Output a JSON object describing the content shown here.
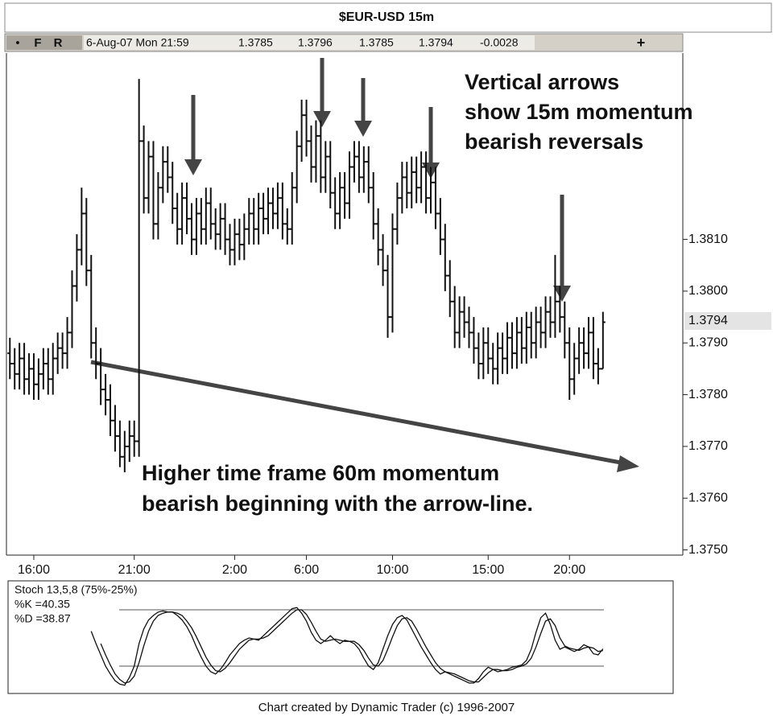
{
  "window_title": "$EUR-USD 15m",
  "toolbar": {
    "buttons": [
      "•",
      "F",
      "R"
    ],
    "datetime": "6-Aug-07 Mon 21:59",
    "change": -0.0028,
    "add_button": "+"
  },
  "chart_data": [
    {
      "type": "ohlc",
      "color": "#111111",
      "categories": [
        null,
        null,
        null,
        null,
        null,
        "16:00",
        null,
        null,
        null,
        null,
        null,
        null,
        null,
        null,
        null,
        null,
        null,
        null,
        null,
        null,
        null,
        null,
        null,
        null,
        null,
        null,
        "21:00",
        null,
        null,
        null,
        null,
        null,
        null,
        null,
        null,
        null,
        null,
        null,
        null,
        null,
        null,
        null,
        null,
        null,
        null,
        null,
        null,
        "2:00",
        null,
        null,
        null,
        null,
        null,
        null,
        null,
        null,
        null,
        null,
        null,
        null,
        null,
        null,
        "6:00",
        null,
        null,
        null,
        null,
        null,
        null,
        null,
        null,
        null,
        null,
        null,
        null,
        null,
        null,
        null,
        null,
        null,
        "10:00",
        null,
        null,
        null,
        null,
        null,
        null,
        null,
        null,
        null,
        null,
        null,
        null,
        null,
        null,
        null,
        null,
        null,
        null,
        null,
        "15:00",
        null,
        null,
        null,
        null,
        null,
        null,
        null,
        null,
        null,
        null,
        null,
        null,
        null,
        null,
        null,
        null,
        "20:00",
        null,
        null,
        null,
        null,
        null,
        null,
        null
      ],
      "open": [
        1.3788,
        1.3786,
        1.3784,
        1.3787,
        1.3783,
        1.3785,
        1.3782,
        1.3784,
        1.3786,
        1.3783,
        1.3787,
        1.3789,
        1.3788,
        1.3792,
        1.3801,
        1.3808,
        1.3815,
        1.3804,
        1.379,
        1.3786,
        1.3781,
        1.3779,
        1.3775,
        1.3772,
        1.3768,
        1.377,
        1.3772,
        1.3771,
        1.3829,
        1.3818,
        1.3826,
        1.3813,
        1.382,
        1.3825,
        1.3822,
        1.3816,
        1.3812,
        1.3818,
        1.3814,
        1.381,
        1.3815,
        1.3812,
        1.3817,
        1.3813,
        1.3811,
        1.3814,
        1.381,
        1.3808,
        1.3811,
        1.3809,
        1.3812,
        1.3815,
        1.3812,
        1.3816,
        1.3814,
        1.3817,
        1.3815,
        1.3818,
        1.3813,
        1.3812,
        1.382,
        1.3828,
        1.3834,
        1.3829,
        1.3824,
        1.383,
        1.3822,
        1.3826,
        1.3819,
        1.3815,
        1.382,
        1.3817,
        1.3824,
        1.3826,
        1.3822,
        1.3825,
        1.382,
        1.3813,
        1.3808,
        1.3804,
        1.3795,
        1.3812,
        1.3818,
        1.3822,
        1.3819,
        1.3823,
        1.382,
        1.3824,
        1.3818,
        1.3821,
        1.3815,
        1.381,
        1.3803,
        1.3798,
        1.3792,
        1.3796,
        1.3794,
        1.3792,
        1.3789,
        1.3786,
        1.379,
        1.3787,
        1.3785,
        1.3789,
        1.3787,
        1.3791,
        1.3788,
        1.3792,
        1.3789,
        1.3793,
        1.379,
        1.3794,
        1.3792,
        1.3796,
        1.3794,
        1.3798,
        1.3795,
        1.379,
        1.3783,
        1.3787,
        1.379,
        1.3788,
        1.3792,
        1.3786,
        1.3785
      ],
      "high": [
        1.3791,
        1.3789,
        1.379,
        1.379,
        1.3788,
        1.3788,
        1.3787,
        1.3789,
        1.3789,
        1.379,
        1.3792,
        1.3792,
        1.3795,
        1.3804,
        1.3811,
        1.382,
        1.3818,
        1.3807,
        1.3793,
        1.3789,
        1.3784,
        1.3782,
        1.3778,
        1.3775,
        1.3773,
        1.3775,
        1.3775,
        1.3841,
        1.3832,
        1.3829,
        1.3829,
        1.3823,
        1.3828,
        1.3828,
        1.3825,
        1.3819,
        1.3821,
        1.3821,
        1.3817,
        1.3818,
        1.3818,
        1.382,
        1.382,
        1.3816,
        1.3817,
        1.3817,
        1.3813,
        1.3814,
        1.3814,
        1.3815,
        1.3818,
        1.3818,
        1.3819,
        1.3819,
        1.382,
        1.382,
        1.3821,
        1.3821,
        1.3816,
        1.3823,
        1.3831,
        1.3837,
        1.3837,
        1.3832,
        1.3833,
        1.3833,
        1.3829,
        1.3829,
        1.3822,
        1.3823,
        1.3823,
        1.3827,
        1.3829,
        1.3829,
        1.3828,
        1.3828,
        1.3823,
        1.3816,
        1.3811,
        1.3807,
        1.3815,
        1.3821,
        1.3825,
        1.3825,
        1.3826,
        1.3826,
        1.3827,
        1.3827,
        1.3824,
        1.3824,
        1.3818,
        1.3813,
        1.3806,
        1.3801,
        1.3799,
        1.3799,
        1.3797,
        1.3795,
        1.3792,
        1.3793,
        1.3793,
        1.379,
        1.3792,
        1.3792,
        1.3794,
        1.3794,
        1.3795,
        1.3795,
        1.3796,
        1.3796,
        1.3797,
        1.3797,
        1.3799,
        1.3799,
        1.3807,
        1.3801,
        1.3798,
        1.3793,
        1.379,
        1.3793,
        1.3793,
        1.3795,
        1.3795,
        1.3789,
        1.3796
      ],
      "low": [
        1.3783,
        1.3781,
        1.3781,
        1.378,
        1.378,
        1.3779,
        1.3779,
        1.3781,
        1.378,
        1.378,
        1.3784,
        1.3785,
        1.3785,
        1.3789,
        1.3798,
        1.3805,
        1.3801,
        1.3787,
        1.3783,
        1.3778,
        1.3776,
        1.3772,
        1.3769,
        1.3766,
        1.3765,
        1.3767,
        1.3768,
        1.3768,
        1.3815,
        1.3815,
        1.381,
        1.381,
        1.3817,
        1.3819,
        1.3813,
        1.3809,
        1.3809,
        1.3811,
        1.3807,
        1.3807,
        1.3809,
        1.3809,
        1.381,
        1.3808,
        1.3808,
        1.3807,
        1.3805,
        1.3805,
        1.3806,
        1.3806,
        1.3809,
        1.3809,
        1.3809,
        1.3811,
        1.3811,
        1.3812,
        1.3812,
        1.381,
        1.3809,
        1.3809,
        1.3817,
        1.3825,
        1.3826,
        1.3821,
        1.3821,
        1.3819,
        1.3819,
        1.3816,
        1.3812,
        1.3812,
        1.3814,
        1.3814,
        1.3821,
        1.3819,
        1.3819,
        1.3817,
        1.381,
        1.3805,
        1.3801,
        1.3791,
        1.3792,
        1.3809,
        1.3815,
        1.3816,
        1.3816,
        1.3817,
        1.3817,
        1.3815,
        1.3815,
        1.3812,
        1.3807,
        1.38,
        1.3795,
        1.3789,
        1.3789,
        1.3791,
        1.3789,
        1.3786,
        1.3783,
        1.3783,
        1.3784,
        1.3782,
        1.3782,
        1.3784,
        1.3784,
        1.3785,
        1.3785,
        1.3786,
        1.3786,
        1.3787,
        1.3787,
        1.3789,
        1.3789,
        1.3791,
        1.3791,
        1.3792,
        1.3787,
        1.3779,
        1.378,
        1.3784,
        1.3785,
        1.3785,
        1.3783,
        1.3782,
        1.3785
      ],
      "close": [
        1.3786,
        1.3784,
        1.3787,
        1.3783,
        1.3785,
        1.3782,
        1.3784,
        1.3786,
        1.3783,
        1.3787,
        1.3789,
        1.3788,
        1.3792,
        1.3801,
        1.3808,
        1.3815,
        1.3804,
        1.379,
        1.3786,
        1.3781,
        1.3779,
        1.3775,
        1.3772,
        1.3768,
        1.377,
        1.3772,
        1.3771,
        1.3829,
        1.3818,
        1.3826,
        1.3813,
        1.382,
        1.3825,
        1.3822,
        1.3816,
        1.3812,
        1.3818,
        1.3814,
        1.381,
        1.3815,
        1.3812,
        1.3817,
        1.3813,
        1.3811,
        1.3814,
        1.381,
        1.3808,
        1.3811,
        1.3809,
        1.3812,
        1.3815,
        1.3812,
        1.3816,
        1.3814,
        1.3817,
        1.3815,
        1.3818,
        1.3813,
        1.3812,
        1.382,
        1.3828,
        1.3834,
        1.3829,
        1.3824,
        1.383,
        1.3822,
        1.3826,
        1.3819,
        1.3815,
        1.382,
        1.3817,
        1.3824,
        1.3826,
        1.3822,
        1.3825,
        1.382,
        1.3813,
        1.3808,
        1.3804,
        1.3795,
        1.3812,
        1.3818,
        1.3822,
        1.3819,
        1.3823,
        1.382,
        1.3824,
        1.3818,
        1.3821,
        1.3815,
        1.381,
        1.3803,
        1.3798,
        1.3792,
        1.3796,
        1.3794,
        1.3792,
        1.3789,
        1.3786,
        1.379,
        1.3787,
        1.3785,
        1.3789,
        1.3787,
        1.3791,
        1.3788,
        1.3792,
        1.3789,
        1.3793,
        1.379,
        1.3794,
        1.3792,
        1.3796,
        1.3794,
        1.3798,
        1.3795,
        1.379,
        1.3783,
        1.3787,
        1.379,
        1.3788,
        1.3792,
        1.3786,
        1.3785,
        1.3794
      ],
      "ylim": [
        1.3749,
        1.3846
      ],
      "yticks": [
        {
          "value": 1.375,
          "label": "1.3750"
        },
        {
          "value": 1.376,
          "label": "1.3760"
        },
        {
          "value": 1.377,
          "label": "1.3770"
        },
        {
          "value": 1.378,
          "label": "1.3780"
        },
        {
          "value": 1.379,
          "label": "1.3790"
        },
        {
          "value": 1.38,
          "label": "1.3800"
        },
        {
          "value": 1.381,
          "label": "1.3810"
        }
      ],
      "annotations": [
        "Vertical arrows",
        "show 15m momentum",
        "bearish reversals",
        "Higher time frame 60m momentum",
        "bearish beginning with the arrow-line."
      ]
    },
    {
      "type": "line",
      "title": "Stoch 13,5,8 (75%-25%)",
      "ylim": [
        0,
        100
      ],
      "levels": [
        75,
        25
      ],
      "level_color": "#555555",
      "series": [
        {
          "name": "%K =40.35",
          "color": "#111111",
          "values": [
            null,
            null,
            null,
            null,
            null,
            null,
            null,
            null,
            null,
            null,
            null,
            null,
            null,
            null,
            null,
            null,
            null,
            56,
            45,
            35,
            25,
            18,
            12,
            9,
            8,
            15,
            25,
            45,
            58,
            66,
            70,
            73,
            74,
            73,
            73,
            70,
            66,
            60,
            52,
            42,
            33,
            25,
            20,
            18,
            22,
            28,
            35,
            40,
            45,
            48,
            50,
            49,
            48,
            52,
            56,
            60,
            64,
            68,
            72,
            76,
            77,
            72,
            65,
            55,
            48,
            45,
            48,
            52,
            48,
            45,
            48,
            47,
            45,
            40,
            32,
            25,
            22,
            28,
            40,
            52,
            62,
            68,
            70,
            66,
            58,
            50,
            42,
            35,
            28,
            22,
            18,
            20,
            18,
            16,
            14,
            12,
            10,
            10,
            14,
            20,
            24,
            22,
            20,
            21,
            22,
            24,
            25,
            26,
            30,
            40,
            55,
            68,
            72,
            62,
            48,
            40,
            42,
            40,
            38,
            40,
            44,
            42,
            36,
            35,
            40.35
          ]
        },
        {
          "name": "%D =38.87",
          "color": "#111111",
          "values": [
            null,
            null,
            null,
            null,
            null,
            null,
            null,
            null,
            null,
            null,
            null,
            null,
            null,
            null,
            null,
            null,
            null,
            null,
            null,
            45,
            35,
            26,
            18,
            13,
            10,
            11,
            16,
            28,
            43,
            56,
            65,
            70,
            72,
            73,
            73,
            72,
            70,
            65,
            59,
            51,
            42,
            33,
            26,
            21,
            20,
            23,
            28,
            34,
            40,
            44,
            48,
            49,
            49,
            50,
            52,
            56,
            60,
            64,
            68,
            72,
            75,
            75,
            71,
            64,
            56,
            49,
            47,
            48,
            49,
            48,
            47,
            47,
            47,
            44,
            39,
            32,
            26,
            25,
            30,
            40,
            51,
            61,
            67,
            68,
            65,
            58,
            50,
            42,
            35,
            28,
            23,
            20,
            19,
            18,
            16,
            14,
            12,
            11,
            11,
            15,
            19,
            22,
            22,
            21,
            21,
            22,
            24,
            25,
            27,
            32,
            42,
            54,
            65,
            67,
            61,
            50,
            43,
            41,
            40,
            39,
            41,
            42,
            41,
            38,
            38.87
          ]
        }
      ]
    }
  ],
  "footer": "Chart created by Dynamic Trader  (c) 1996-2007"
}
